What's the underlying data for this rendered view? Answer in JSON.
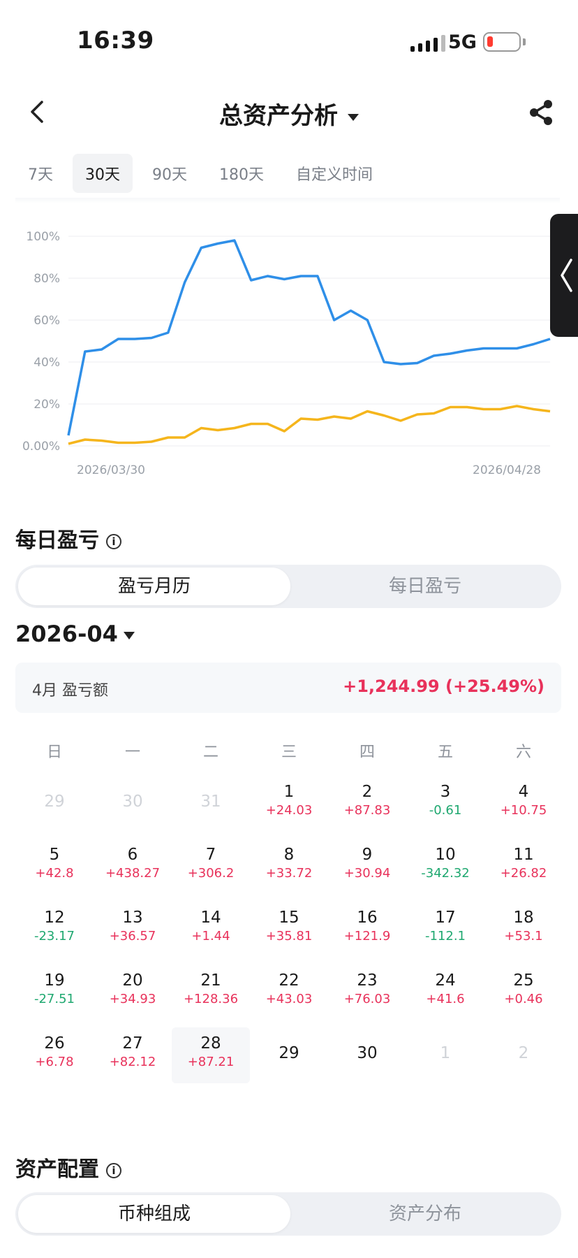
{
  "status_bar": {
    "time": "16:39",
    "network": "5G"
  },
  "header": {
    "title": "总资产分析"
  },
  "range_tabs": [
    {
      "label": "7天",
      "active": false
    },
    {
      "label": "30天",
      "active": true
    },
    {
      "label": "90天",
      "active": false
    },
    {
      "label": "180天",
      "active": false
    },
    {
      "label": "自定义时间",
      "active": false
    }
  ],
  "chart_data": {
    "type": "line",
    "y_ticks": [
      "100%",
      "80%",
      "60%",
      "40%",
      "20%",
      "0.00%"
    ],
    "ylim": [
      0,
      100
    ],
    "x_start_label": "2026/03/30",
    "x_end_label": "2026/04/28",
    "grid": true,
    "series": [
      {
        "color": "#2f8fe8",
        "values": [
          5,
          45,
          46,
          51,
          51,
          51.5,
          54,
          78,
          94.5,
          96.5,
          98,
          79,
          81,
          79.5,
          81,
          81,
          60,
          64.5,
          60,
          40,
          39,
          39.5,
          43,
          44,
          45.5,
          46.5,
          46.5,
          46.5,
          48.5,
          51
        ]
      },
      {
        "color": "#f5b51c",
        "values": [
          1,
          3,
          2.5,
          1.5,
          1.5,
          2,
          4,
          4,
          8.5,
          7.5,
          8.5,
          10.5,
          10.5,
          7,
          13,
          12.5,
          14,
          13,
          16.5,
          14.5,
          12,
          15,
          15.5,
          18.5,
          18.5,
          17.5,
          17.5,
          19,
          17.5,
          16.5
        ]
      }
    ]
  },
  "daily_pnl": {
    "title": "每日盈亏",
    "info_icon": "ⓘ",
    "segments": [
      "盈亏月历",
      "每日盈亏"
    ],
    "month": "2026-04",
    "summary_label": "4月 盈亏额",
    "summary_value": "+1,244.99 (+25.49%)",
    "weekdays": [
      "日",
      "一",
      "二",
      "三",
      "四",
      "五",
      "六"
    ]
  },
  "calendar_rows": [
    [
      {
        "d": "29",
        "v": "",
        "faded": true
      },
      {
        "d": "30",
        "v": "",
        "faded": true
      },
      {
        "d": "31",
        "v": "",
        "faded": true
      },
      {
        "d": "1",
        "v": "+24.03"
      },
      {
        "d": "2",
        "v": "+87.83"
      },
      {
        "d": "3",
        "v": "-0.61"
      },
      {
        "d": "4",
        "v": "+10.75"
      }
    ],
    [
      {
        "d": "5",
        "v": "+42.8"
      },
      {
        "d": "6",
        "v": "+438.27"
      },
      {
        "d": "7",
        "v": "+306.2"
      },
      {
        "d": "8",
        "v": "+33.72"
      },
      {
        "d": "9",
        "v": "+30.94"
      },
      {
        "d": "10",
        "v": "-342.32"
      },
      {
        "d": "11",
        "v": "+26.82"
      }
    ],
    [
      {
        "d": "12",
        "v": "-23.17"
      },
      {
        "d": "13",
        "v": "+36.57"
      },
      {
        "d": "14",
        "v": "+1.44"
      },
      {
        "d": "15",
        "v": "+35.81"
      },
      {
        "d": "16",
        "v": "+121.9"
      },
      {
        "d": "17",
        "v": "-112.1"
      },
      {
        "d": "18",
        "v": "+53.1"
      }
    ],
    [
      {
        "d": "19",
        "v": "-27.51"
      },
      {
        "d": "20",
        "v": "+34.93"
      },
      {
        "d": "21",
        "v": "+128.36"
      },
      {
        "d": "22",
        "v": "+43.03"
      },
      {
        "d": "23",
        "v": "+76.03"
      },
      {
        "d": "24",
        "v": "+41.6"
      },
      {
        "d": "25",
        "v": "+0.46"
      }
    ],
    [
      {
        "d": "26",
        "v": "+6.78"
      },
      {
        "d": "27",
        "v": "+82.12"
      },
      {
        "d": "28",
        "v": "+87.21",
        "today": true
      },
      {
        "d": "29",
        "v": ""
      },
      {
        "d": "30",
        "v": ""
      },
      {
        "d": "1",
        "v": "",
        "faded": true
      },
      {
        "d": "2",
        "v": "",
        "faded": true
      }
    ]
  ],
  "asset_allocation": {
    "title": "资产配置",
    "segments": [
      "币种组成",
      "资产分布"
    ]
  },
  "colors": {
    "positive": "#e8325b",
    "negative": "#1fa870",
    "blue_line": "#2f8fe8",
    "yellow_line": "#f5b51c"
  }
}
